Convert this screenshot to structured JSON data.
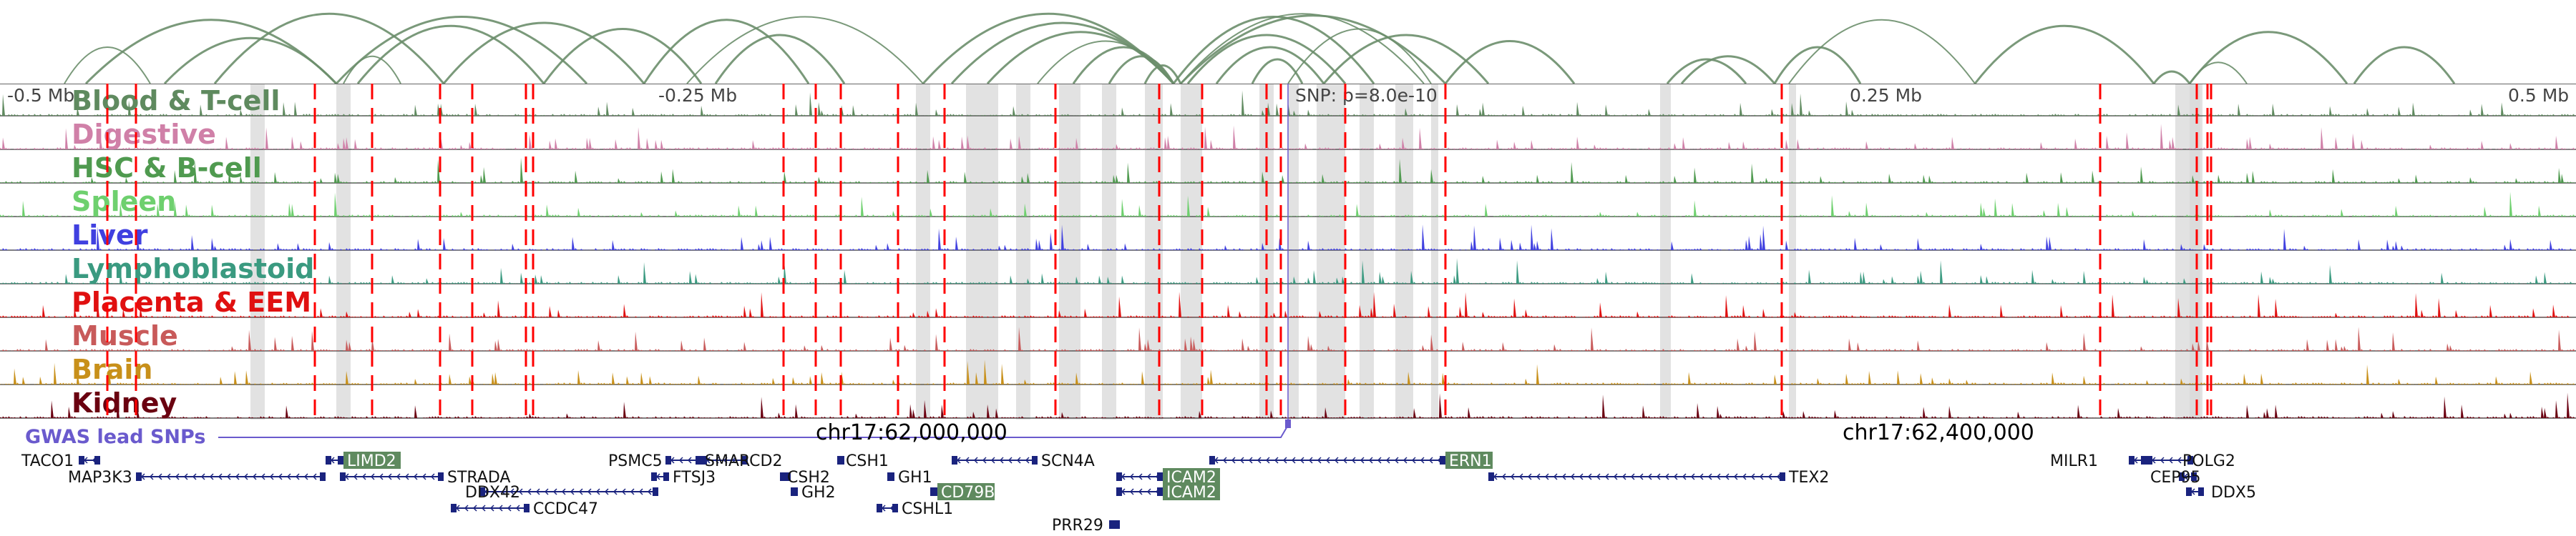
{
  "colors": {
    "arc": "#6b8e6b",
    "track_line": "#555555",
    "gwas": "#ff0000",
    "snp": "#6a5acd",
    "gene": "#1a237e",
    "gene_box": "#5f8a5f",
    "shade": "#d8d8d8"
  },
  "axis": {
    "ticks": [
      {
        "label": "-0.5 Mb"
      },
      {
        "label": "-0.25 Mb"
      },
      {
        "label": "SNP: p=8.0e-10"
      },
      {
        "label": "0.25 Mb"
      },
      {
        "label": "0.5 Mb"
      }
    ]
  },
  "tracks": [
    {
      "name": "Blood & T-cell",
      "color": "#5f8a5f"
    },
    {
      "name": "Digestive",
      "color": "#d080a8"
    },
    {
      "name": "HSC & B-cell",
      "color": "#4f9a4f"
    },
    {
      "name": "Spleen",
      "color": "#6ed06e"
    },
    {
      "name": "Liver",
      "color": "#4040e0"
    },
    {
      "name": "Lymphoblastoid",
      "color": "#3a9a80"
    },
    {
      "name": "Placenta & EEM",
      "color": "#e01010"
    },
    {
      "name": "Muscle",
      "color": "#c85a5a"
    },
    {
      "name": "Brain",
      "color": "#c8901a"
    },
    {
      "name": "Kidney",
      "color": "#6a0010"
    }
  ],
  "gwas": {
    "label": "GWAS lead SNPs"
  },
  "coordinates": [
    {
      "label": "chr17:62,000,000"
    },
    {
      "label": "chr17:62,400,000"
    }
  ],
  "genes": [
    {
      "name": "TACO1",
      "boxed": false
    },
    {
      "name": "MAP3K3",
      "boxed": false
    },
    {
      "name": "LIMD2",
      "boxed": true
    },
    {
      "name": "STRADA",
      "boxed": false
    },
    {
      "name": "DDX42",
      "boxed": false
    },
    {
      "name": "CCDC47",
      "boxed": false
    },
    {
      "name": "PSMC5",
      "boxed": false
    },
    {
      "name": "SMARCD2",
      "boxed": false
    },
    {
      "name": "FTSJ3",
      "boxed": false
    },
    {
      "name": "CSH2",
      "boxed": false
    },
    {
      "name": "GH2",
      "boxed": false
    },
    {
      "name": "CSH1",
      "boxed": false
    },
    {
      "name": "GH1",
      "boxed": false
    },
    {
      "name": "CD79B",
      "boxed": true
    },
    {
      "name": "CSHL1",
      "boxed": false
    },
    {
      "name": "SCN4A",
      "boxed": false
    },
    {
      "name": "PRR29",
      "boxed": false
    },
    {
      "name": "ICAM2",
      "boxed": true
    },
    {
      "name": "ICAM2",
      "boxed": true
    },
    {
      "name": "ERN1",
      "boxed": true
    },
    {
      "name": "TEX2",
      "boxed": false
    },
    {
      "name": "MILR1",
      "boxed": false
    },
    {
      "name": "POLG2",
      "boxed": false
    },
    {
      "name": "CEP95",
      "boxed": false
    },
    {
      "name": "DDX5",
      "boxed": false
    }
  ]
}
